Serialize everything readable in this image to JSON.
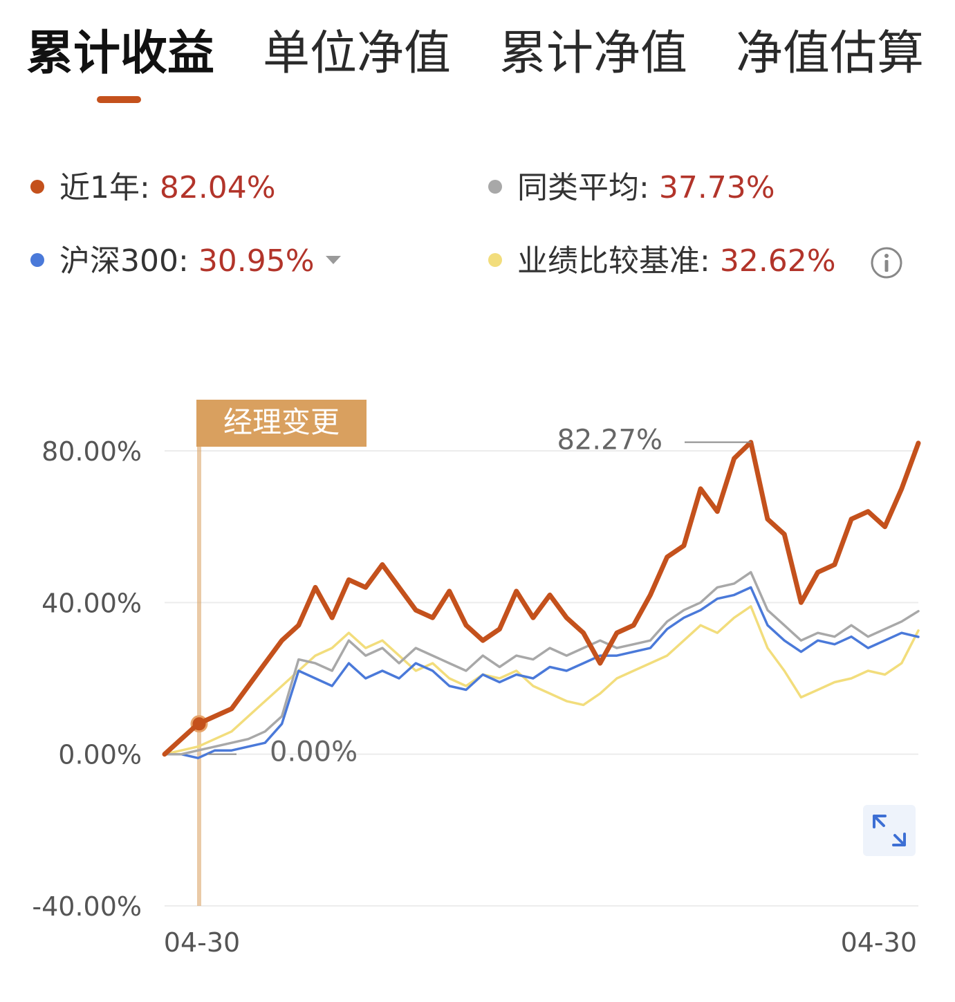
{
  "tabs": [
    {
      "label": "累计收益",
      "active": true
    },
    {
      "label": "单位净值",
      "active": false
    },
    {
      "label": "累计净值",
      "active": false
    },
    {
      "label": "净值估算",
      "active": false
    }
  ],
  "legend": [
    {
      "label": "近1年:",
      "value": "82.04%",
      "color": "#c4511c"
    },
    {
      "label": "同类平均:",
      "value": "37.73%",
      "color": "#a8a8a8"
    },
    {
      "label": "沪深300:",
      "value": "30.95%",
      "color": "#4a79d9",
      "has_dropdown": true
    },
    {
      "label": "业绩比较基准:",
      "value": "32.62%",
      "color": "#f2dd7c",
      "has_info": true
    }
  ],
  "colors": {
    "fund": "#c4511c",
    "peer": "#a8a8a8",
    "hs300": "#4a79d9",
    "benchmark": "#f2dd7c",
    "annotation": "#d9a05f",
    "grid": "#ececec",
    "axis_text": "#555555"
  },
  "icons": {
    "dropdown": "triangle-down-icon",
    "info": "info-circle-icon",
    "expand": "expand-arrows-icon"
  },
  "chart_data": {
    "type": "line",
    "y_tick_labels": [
      "80.00%",
      "40.00%",
      "0.00%",
      "-40.00%"
    ],
    "ylim": [
      -40,
      80
    ],
    "x_tick_labels": [
      "04-30",
      "04-30"
    ],
    "grid": true,
    "annotations": {
      "manager_change": "经理变更",
      "max_label": "82.27%",
      "min_label": "0.00%"
    },
    "series": [
      {
        "key": "fund",
        "values": [
          0,
          4,
          8,
          10,
          12,
          18,
          24,
          30,
          34,
          44,
          36,
          46,
          44,
          50,
          44,
          38,
          36,
          43,
          34,
          30,
          33,
          43,
          36,
          42,
          36,
          32,
          24,
          32,
          34,
          42,
          52,
          55,
          70,
          64,
          78,
          82.27,
          62,
          58,
          40,
          48,
          50,
          62,
          64,
          60,
          70,
          82.04
        ]
      },
      {
        "key": "peer",
        "values": [
          0,
          0,
          1,
          2,
          3,
          4,
          6,
          10,
          25,
          24,
          22,
          30,
          26,
          28,
          24,
          28,
          26,
          24,
          22,
          26,
          23,
          26,
          25,
          28,
          26,
          28,
          30,
          28,
          29,
          30,
          35,
          38,
          40,
          44,
          45,
          48,
          38,
          34,
          30,
          32,
          31,
          34,
          31,
          33,
          35,
          37.73
        ]
      },
      {
        "key": "hs300",
        "values": [
          0,
          0,
          -1,
          1,
          1,
          2,
          3,
          8,
          22,
          20,
          18,
          24,
          20,
          22,
          20,
          24,
          22,
          18,
          17,
          21,
          19,
          21,
          20,
          23,
          22,
          24,
          26,
          26,
          27,
          28,
          33,
          36,
          38,
          41,
          42,
          44,
          34,
          30,
          27,
          30,
          29,
          31,
          28,
          30,
          32,
          30.95
        ]
      },
      {
        "key": "benchmark",
        "values": [
          0,
          1,
          2,
          4,
          6,
          10,
          14,
          18,
          22,
          26,
          28,
          32,
          28,
          30,
          26,
          22,
          24,
          20,
          18,
          21,
          20,
          22,
          18,
          16,
          14,
          13,
          16,
          20,
          22,
          24,
          26,
          30,
          34,
          32,
          36,
          39,
          28,
          22,
          15,
          17,
          19,
          20,
          22,
          21,
          24,
          32.62
        ]
      }
    ]
  }
}
